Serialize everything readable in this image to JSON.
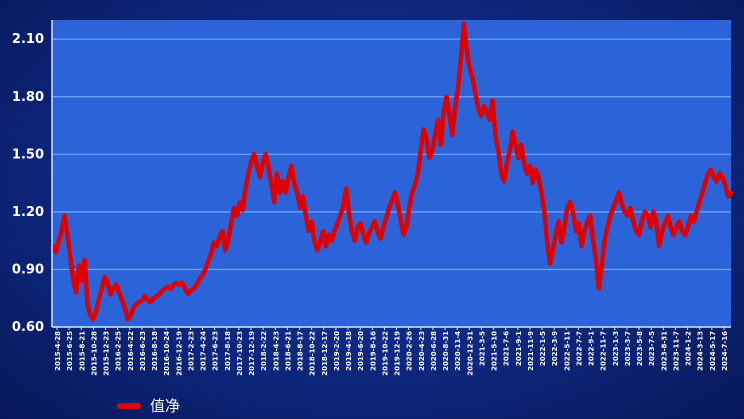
{
  "colors": {
    "background": "#0f2a86",
    "plot_area": "#2a64d8",
    "grid": "#6fa6ff",
    "axis": "#cfe0ff",
    "line": "#e00000",
    "text": "#ffffff"
  },
  "chart_data": {
    "type": "line",
    "title": "",
    "xlabel": "",
    "ylabel": "",
    "ylim": [
      0.6,
      2.2
    ],
    "yticks": [
      "0.60",
      "0.90",
      "1.20",
      "1.50",
      "1.80",
      "2.10"
    ],
    "ytick_values": [
      0.6,
      0.9,
      1.2,
      1.5,
      1.8,
      2.1
    ],
    "xticks": [
      "2015-4-28",
      "2015-6-25",
      "2015-8-21",
      "2015-10-28",
      "2015-12-23",
      "2016-2-25",
      "2016-4-22",
      "2016-6-23",
      "2016-8-18",
      "2016-10-24",
      "2016-12-19",
      "2017-2-23",
      "2017-4-24",
      "2017-6-23",
      "2017-8-18",
      "2017-10-23",
      "2017-12-19",
      "2018-2-22",
      "2018-4-23",
      "2018-6-21",
      "2018-8-17",
      "2018-10-22",
      "2018-12-17",
      "2019-2-20",
      "2019-4-18",
      "2019-6-20",
      "2019-8-16",
      "2019-10-22",
      "2019-12-19",
      "2020-2-26",
      "2020-4-23",
      "2020-6-28",
      "2020-8-31",
      "2020-11-4",
      "2020-12-31",
      "2021-3-5",
      "2021-5-10",
      "2021-7-6",
      "2021-9-1",
      "2021-11-9",
      "2022-1-5",
      "2022-3-9",
      "2022-5-11",
      "2022-7-7",
      "2022-9-1",
      "2022-11-7",
      "2023-1-3",
      "2023-3-7",
      "2023-5-8",
      "2023-7-5",
      "2023-8-31",
      "2023-11-7",
      "2024-1-2",
      "2024-3-13",
      "2024-5-17",
      "2024-7-16"
    ],
    "grid": true,
    "legend": {
      "position": "bottom-left",
      "entries": [
        "值净"
      ]
    },
    "series": [
      {
        "name": "值净",
        "x_start": "2015-4-28",
        "x_end": "2024-7-16",
        "values": [
          1.02,
          0.99,
          1.05,
          1.1,
          1.18,
          1.08,
          0.97,
          0.85,
          0.78,
          0.92,
          0.84,
          0.95,
          0.72,
          0.66,
          0.64,
          0.68,
          0.75,
          0.8,
          0.86,
          0.83,
          0.77,
          0.8,
          0.82,
          0.78,
          0.74,
          0.7,
          0.64,
          0.66,
          0.7,
          0.72,
          0.73,
          0.74,
          0.76,
          0.74,
          0.73,
          0.75,
          0.76,
          0.77,
          0.79,
          0.8,
          0.81,
          0.8,
          0.82,
          0.83,
          0.82,
          0.83,
          0.8,
          0.77,
          0.79,
          0.8,
          0.82,
          0.85,
          0.87,
          0.9,
          0.94,
          0.98,
          1.04,
          1.02,
          1.07,
          1.1,
          1.0,
          1.05,
          1.14,
          1.22,
          1.18,
          1.25,
          1.21,
          1.32,
          1.4,
          1.46,
          1.5,
          1.44,
          1.38,
          1.45,
          1.5,
          1.43,
          1.35,
          1.25,
          1.4,
          1.3,
          1.36,
          1.3,
          1.38,
          1.44,
          1.35,
          1.3,
          1.22,
          1.28,
          1.18,
          1.1,
          1.15,
          1.05,
          1.0,
          1.04,
          1.1,
          1.02,
          1.08,
          1.05,
          1.1,
          1.14,
          1.18,
          1.23,
          1.32,
          1.2,
          1.1,
          1.05,
          1.12,
          1.14,
          1.08,
          1.04,
          1.09,
          1.12,
          1.15,
          1.1,
          1.06,
          1.12,
          1.17,
          1.22,
          1.26,
          1.3,
          1.24,
          1.16,
          1.08,
          1.12,
          1.22,
          1.3,
          1.34,
          1.4,
          1.52,
          1.63,
          1.58,
          1.48,
          1.52,
          1.6,
          1.68,
          1.55,
          1.72,
          1.8,
          1.7,
          1.6,
          1.75,
          1.85,
          2.0,
          2.18,
          2.05,
          1.95,
          1.9,
          1.82,
          1.74,
          1.7,
          1.75,
          1.72,
          1.68,
          1.78,
          1.6,
          1.52,
          1.4,
          1.36,
          1.45,
          1.52,
          1.62,
          1.55,
          1.48,
          1.55,
          1.45,
          1.4,
          1.44,
          1.35,
          1.42,
          1.38,
          1.3,
          1.2,
          1.05,
          0.93,
          1.0,
          1.08,
          1.15,
          1.04,
          1.12,
          1.22,
          1.25,
          1.2,
          1.1,
          1.14,
          1.02,
          1.1,
          1.15,
          1.18,
          1.05,
          0.95,
          0.8,
          0.92,
          1.05,
          1.12,
          1.18,
          1.22,
          1.26,
          1.3,
          1.24,
          1.2,
          1.18,
          1.22,
          1.15,
          1.1,
          1.08,
          1.15,
          1.2,
          1.18,
          1.12,
          1.2,
          1.15,
          1.02,
          1.1,
          1.14,
          1.18,
          1.12,
          1.08,
          1.12,
          1.15,
          1.1,
          1.08,
          1.12,
          1.18,
          1.15,
          1.2,
          1.25,
          1.3,
          1.35,
          1.4,
          1.42,
          1.38,
          1.36,
          1.4,
          1.38,
          1.34,
          1.28,
          1.3
        ]
      }
    ]
  }
}
